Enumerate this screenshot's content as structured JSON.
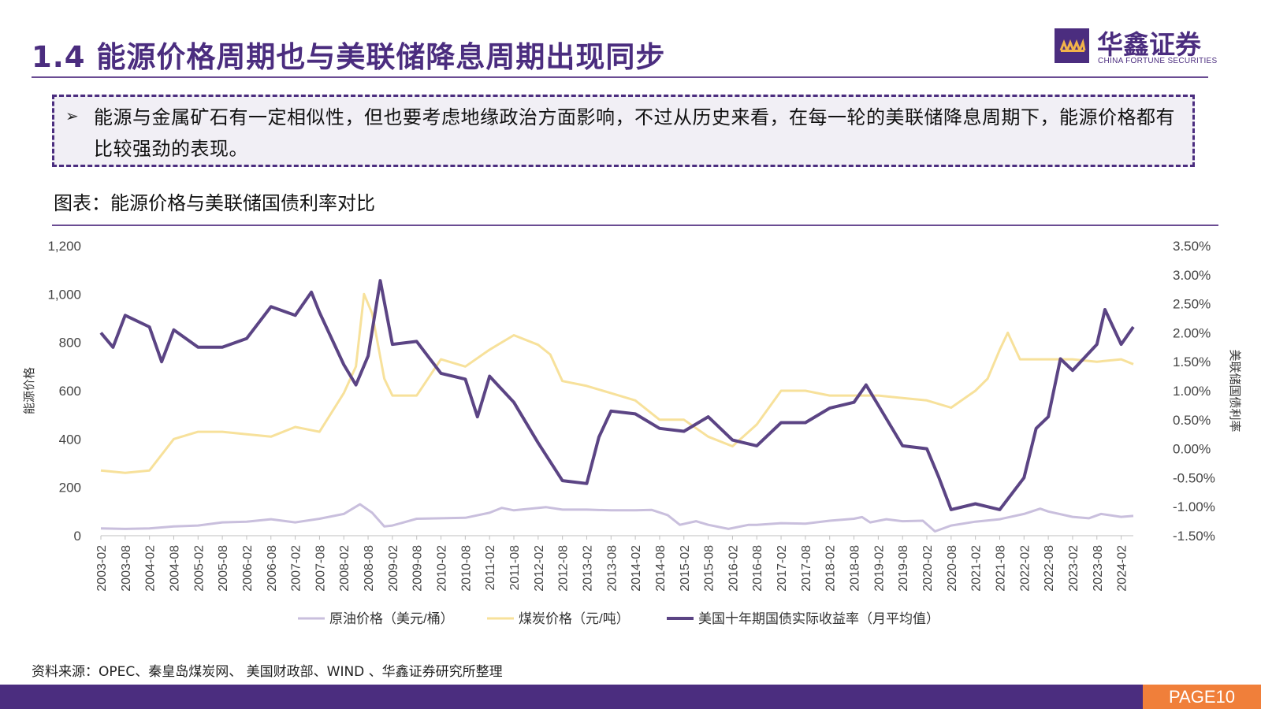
{
  "header": {
    "title": "1.4 能源价格周期也与美联储降息周期出现同步",
    "logo_cn": "华鑫证券",
    "logo_en": "CHINA FORTUNE SECURITIES"
  },
  "note": {
    "bullet": "➢",
    "text": "能源与金属矿石有一定相似性，但也要考虑地缘政治方面影响，不过从历史来看，在每一轮的美联储降息周期下，能源价格都有比较强劲的表现。"
  },
  "figure_title": "图表：能源价格与美联储国债利率对比",
  "source": "资料来源：OPEC、秦皇岛煤炭网、 美国财政部、WIND 、华鑫证券研究所整理",
  "footer": {
    "page": "PAGE10"
  },
  "colors": {
    "brand": "#4b2d7f",
    "oil": "#c9bfdd",
    "coal": "#f7e19b",
    "yield": "#5b4484",
    "page_badge": "#f07f3a"
  },
  "chart_data": {
    "type": "line",
    "title": "",
    "ylabel_left": "能源价格",
    "ylabel_right": "美联储国债利率",
    "ylim_left": [
      0,
      1200
    ],
    "ylim_right": [
      -1.5,
      3.5
    ],
    "left_ticks": [
      "0",
      "200",
      "400",
      "600",
      "800",
      "1,000",
      "1,200"
    ],
    "right_ticks": [
      "-1.50%",
      "-1.00%",
      "-0.50%",
      "0.00%",
      "0.50%",
      "1.00%",
      "1.50%",
      "2.00%",
      "2.50%",
      "3.00%",
      "3.50%"
    ],
    "x_ticks": [
      "2003-02",
      "2003-08",
      "2004-02",
      "2004-08",
      "2005-02",
      "2005-08",
      "2006-02",
      "2006-08",
      "2007-02",
      "2007-08",
      "2008-02",
      "2008-08",
      "2009-02",
      "2009-08",
      "2010-02",
      "2010-08",
      "2011-02",
      "2011-08",
      "2012-02",
      "2012-08",
      "2013-02",
      "2013-08",
      "2014-02",
      "2014-08",
      "2015-02",
      "2015-08",
      "2016-02",
      "2016-08",
      "2017-02",
      "2017-08",
      "2018-02",
      "2018-08",
      "2019-02",
      "2019-08",
      "2020-02",
      "2020-08",
      "2021-02",
      "2021-08",
      "2022-02",
      "2022-08",
      "2023-02",
      "2023-08",
      "2024-02"
    ],
    "grid": false,
    "legend_position": "bottom",
    "series": [
      {
        "name": "原油价格（美元/桶）",
        "axis": "left",
        "points": [
          [
            "2003-02",
            30
          ],
          [
            "2003-08",
            28
          ],
          [
            "2004-02",
            30
          ],
          [
            "2004-08",
            38
          ],
          [
            "2005-02",
            42
          ],
          [
            "2005-08",
            55
          ],
          [
            "2006-02",
            58
          ],
          [
            "2006-08",
            68
          ],
          [
            "2007-02",
            55
          ],
          [
            "2007-08",
            70
          ],
          [
            "2008-02",
            90
          ],
          [
            "2008-06",
            130
          ],
          [
            "2008-09",
            95
          ],
          [
            "2008-12",
            38
          ],
          [
            "2009-02",
            42
          ],
          [
            "2009-08",
            70
          ],
          [
            "2010-02",
            72
          ],
          [
            "2010-08",
            74
          ],
          [
            "2011-02",
            95
          ],
          [
            "2011-05",
            115
          ],
          [
            "2011-08",
            105
          ],
          [
            "2012-02",
            115
          ],
          [
            "2012-04",
            118
          ],
          [
            "2012-08",
            108
          ],
          [
            "2013-02",
            108
          ],
          [
            "2013-08",
            105
          ],
          [
            "2014-02",
            105
          ],
          [
            "2014-06",
            107
          ],
          [
            "2014-10",
            85
          ],
          [
            "2015-01",
            45
          ],
          [
            "2015-05",
            60
          ],
          [
            "2015-08",
            45
          ],
          [
            "2016-01",
            28
          ],
          [
            "2016-06",
            45
          ],
          [
            "2016-08",
            45
          ],
          [
            "2017-02",
            52
          ],
          [
            "2017-08",
            50
          ],
          [
            "2018-02",
            62
          ],
          [
            "2018-08",
            70
          ],
          [
            "2018-10",
            77
          ],
          [
            "2018-12",
            55
          ],
          [
            "2019-04",
            68
          ],
          [
            "2019-08",
            60
          ],
          [
            "2020-01",
            62
          ],
          [
            "2020-04",
            18
          ],
          [
            "2020-08",
            42
          ],
          [
            "2021-02",
            58
          ],
          [
            "2021-08",
            68
          ],
          [
            "2022-02",
            90
          ],
          [
            "2022-06",
            112
          ],
          [
            "2022-08",
            100
          ],
          [
            "2023-02",
            78
          ],
          [
            "2023-06",
            72
          ],
          [
            "2023-09",
            90
          ],
          [
            "2024-02",
            78
          ],
          [
            "2024-05",
            82
          ]
        ]
      },
      {
        "name": "煤炭价格（元/吨）",
        "axis": "left",
        "points": [
          [
            "2003-02",
            270
          ],
          [
            "2003-08",
            260
          ],
          [
            "2004-02",
            270
          ],
          [
            "2004-08",
            400
          ],
          [
            "2005-02",
            430
          ],
          [
            "2005-08",
            430
          ],
          [
            "2006-02",
            420
          ],
          [
            "2006-08",
            410
          ],
          [
            "2007-02",
            450
          ],
          [
            "2007-08",
            430
          ],
          [
            "2008-02",
            590
          ],
          [
            "2008-05",
            700
          ],
          [
            "2008-07",
            1000
          ],
          [
            "2008-09",
            920
          ],
          [
            "2008-12",
            650
          ],
          [
            "2009-02",
            580
          ],
          [
            "2009-08",
            580
          ],
          [
            "2010-02",
            730
          ],
          [
            "2010-08",
            700
          ],
          [
            "2011-02",
            770
          ],
          [
            "2011-08",
            830
          ],
          [
            "2012-02",
            790
          ],
          [
            "2012-05",
            750
          ],
          [
            "2012-08",
            640
          ],
          [
            "2013-02",
            620
          ],
          [
            "2013-08",
            590
          ],
          [
            "2014-02",
            560
          ],
          [
            "2014-08",
            480
          ],
          [
            "2015-02",
            480
          ],
          [
            "2015-08",
            410
          ],
          [
            "2016-02",
            370
          ],
          [
            "2016-08",
            460
          ],
          [
            "2017-02",
            600
          ],
          [
            "2017-08",
            600
          ],
          [
            "2018-02",
            580
          ],
          [
            "2018-08",
            580
          ],
          [
            "2019-02",
            580
          ],
          [
            "2019-08",
            570
          ],
          [
            "2020-02",
            560
          ],
          [
            "2020-08",
            530
          ],
          [
            "2021-02",
            600
          ],
          [
            "2021-05",
            650
          ],
          [
            "2021-08",
            770
          ],
          [
            "2021-10",
            840
          ],
          [
            "2022-01",
            730
          ],
          [
            "2022-08",
            730
          ],
          [
            "2023-02",
            730
          ],
          [
            "2023-08",
            720
          ],
          [
            "2024-02",
            730
          ],
          [
            "2024-05",
            710
          ]
        ]
      },
      {
        "name": "美国十年期国债实际收益率（月平均值）",
        "axis": "right",
        "points": [
          [
            "2003-02",
            2.0
          ],
          [
            "2003-05",
            1.75
          ],
          [
            "2003-08",
            2.3
          ],
          [
            "2004-02",
            2.1
          ],
          [
            "2004-05",
            1.5
          ],
          [
            "2004-08",
            2.05
          ],
          [
            "2005-02",
            1.75
          ],
          [
            "2005-08",
            1.75
          ],
          [
            "2006-02",
            1.9
          ],
          [
            "2006-08",
            2.45
          ],
          [
            "2007-02",
            2.3
          ],
          [
            "2007-06",
            2.7
          ],
          [
            "2007-08",
            2.35
          ],
          [
            "2008-02",
            1.45
          ],
          [
            "2008-05",
            1.1
          ],
          [
            "2008-08",
            1.6
          ],
          [
            "2008-11",
            2.9
          ],
          [
            "2009-02",
            1.8
          ],
          [
            "2009-08",
            1.85
          ],
          [
            "2010-02",
            1.3
          ],
          [
            "2010-08",
            1.2
          ],
          [
            "2010-11",
            0.55
          ],
          [
            "2011-02",
            1.25
          ],
          [
            "2011-08",
            0.8
          ],
          [
            "2012-02",
            0.1
          ],
          [
            "2012-08",
            -0.55
          ],
          [
            "2013-02",
            -0.6
          ],
          [
            "2013-05",
            0.2
          ],
          [
            "2013-08",
            0.65
          ],
          [
            "2014-02",
            0.6
          ],
          [
            "2014-08",
            0.35
          ],
          [
            "2015-02",
            0.3
          ],
          [
            "2015-08",
            0.55
          ],
          [
            "2016-02",
            0.15
          ],
          [
            "2016-08",
            0.05
          ],
          [
            "2017-02",
            0.45
          ],
          [
            "2017-08",
            0.45
          ],
          [
            "2018-02",
            0.7
          ],
          [
            "2018-08",
            0.8
          ],
          [
            "2018-11",
            1.1
          ],
          [
            "2019-02",
            0.75
          ],
          [
            "2019-08",
            0.05
          ],
          [
            "2020-02",
            0.0
          ],
          [
            "2020-05",
            -0.5
          ],
          [
            "2020-08",
            -1.05
          ],
          [
            "2021-02",
            -0.95
          ],
          [
            "2021-08",
            -1.05
          ],
          [
            "2022-02",
            -0.5
          ],
          [
            "2022-05",
            0.35
          ],
          [
            "2022-08",
            0.55
          ],
          [
            "2022-11",
            1.55
          ],
          [
            "2023-02",
            1.35
          ],
          [
            "2023-08",
            1.8
          ],
          [
            "2023-10",
            2.4
          ],
          [
            "2024-02",
            1.8
          ],
          [
            "2024-05",
            2.1
          ]
        ]
      }
    ]
  }
}
